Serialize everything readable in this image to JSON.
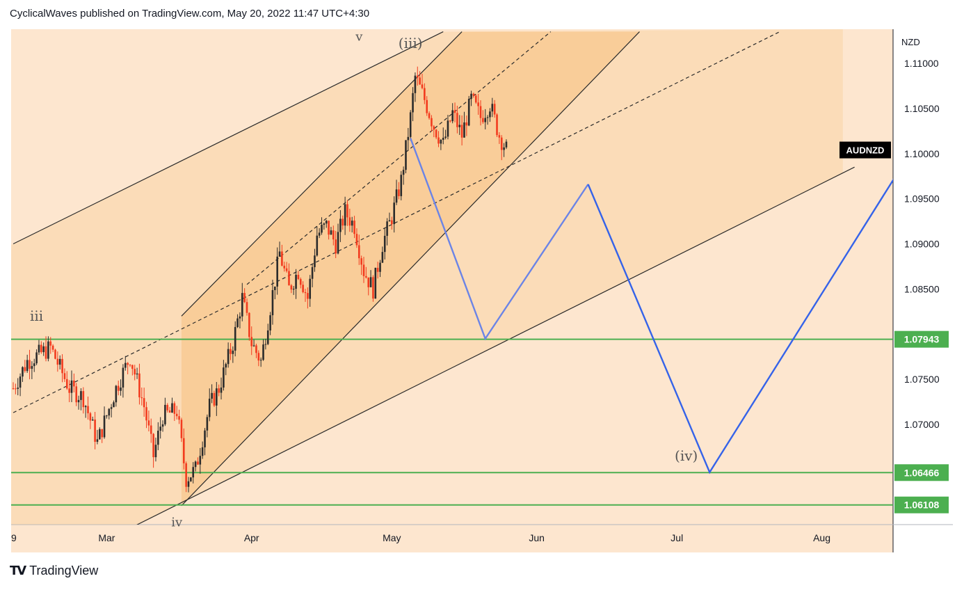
{
  "header": {
    "publish_line": "CyclicalWaves published on TradingView.com, May 20, 2022 11:47 UTC+4:30"
  },
  "footer": {
    "brand_logo": "TV",
    "brand_name": "TradingView"
  },
  "chart_data": {
    "type": "line",
    "symbol": "AUDNZD",
    "currency_label": "NZD",
    "y_ticks": [
      "1.11000",
      "1.10500",
      "1.10000",
      "1.09500",
      "1.09000",
      "1.08500",
      "1.07500",
      "1.07000"
    ],
    "x_ticks": [
      "9",
      "Mar",
      "Apr",
      "May",
      "Jun",
      "Jul",
      "Aug"
    ],
    "ylim": [
      1.0585,
      1.1135
    ],
    "xlim_days": [
      -1,
      191
    ],
    "price_levels": [
      {
        "value": 1.07943,
        "label": "1.07943"
      },
      {
        "value": 1.06466,
        "label": "1.06466"
      },
      {
        "value": 1.06108,
        "label": "1.06108"
      }
    ],
    "wave_labels": [
      {
        "text": "v",
        "day": 74,
        "price": 1.1125
      },
      {
        "text": "(iii)",
        "day": 85,
        "price": 1.1117
      },
      {
        "text": "iii",
        "day": 5,
        "price": 1.0815
      },
      {
        "text": "iv",
        "day": 35,
        "price": 1.0587
      },
      {
        "text": "(iv)",
        "day": 144,
        "price": 1.066
      }
    ],
    "forecast_path_1": [
      {
        "day": 85,
        "price": 1.1017
      },
      {
        "day": 101,
        "price": 1.0795
      },
      {
        "day": 123,
        "price": 1.0966
      }
    ],
    "forecast_path_2": [
      {
        "day": 123,
        "price": 1.0966
      },
      {
        "day": 149,
        "price": 1.0647
      },
      {
        "day": 190,
        "price": 1.0985
      }
    ],
    "channel_lines": [
      {
        "from": {
          "day": 0,
          "price": 1.09
        },
        "to": {
          "day": 92,
          "price": 1.1135
        }
      },
      {
        "from": {
          "day": 36,
          "price": 1.082
        },
        "to": {
          "day": 96,
          "price": 1.1135
        }
      },
      {
        "from": {
          "day": 36,
          "price": 1.061
        },
        "to": {
          "day": 134,
          "price": 1.1135
        }
      },
      {
        "from": {
          "day": 25,
          "price": 1.0585
        },
        "to": {
          "day": 180,
          "price": 1.0985
        }
      }
    ],
    "dashed_lines": [
      {
        "from": {
          "day": 0,
          "price": 1.0713
        },
        "to": {
          "day": 164,
          "price": 1.1135
        }
      },
      {
        "from": {
          "day": 50,
          "price": 1.0855
        },
        "to": {
          "day": 115,
          "price": 1.1135
        }
      }
    ],
    "shaded_areas": [
      {
        "name": "outer-channel-zone",
        "color": "#f7c98c",
        "opacity": 0.35
      },
      {
        "name": "inner-channel-zone",
        "color": "#f7b25f",
        "opacity": 0.35
      }
    ],
    "candles_summary": {
      "period": "Feb 2022 - May 20 2022",
      "anchors": [
        [
          0,
          1.074
        ],
        [
          3,
          1.077
        ],
        [
          8,
          1.0785
        ],
        [
          12,
          1.074
        ],
        [
          15,
          1.073
        ],
        [
          18,
          1.068
        ],
        [
          22,
          1.074
        ],
        [
          25,
          1.0775
        ],
        [
          28,
          1.072
        ],
        [
          30,
          1.0665
        ],
        [
          32,
          1.071
        ],
        [
          35,
          1.0715
        ],
        [
          37,
          1.064
        ],
        [
          39,
          1.065
        ],
        [
          42,
          1.072
        ],
        [
          44,
          1.074
        ],
        [
          47,
          1.079
        ],
        [
          49,
          1.084
        ],
        [
          51,
          1.079
        ],
        [
          53,
          1.077
        ],
        [
          55,
          1.083
        ],
        [
          57,
          1.089
        ],
        [
          59,
          1.085
        ],
        [
          61,
          1.087
        ],
        [
          63,
          1.084
        ],
        [
          65,
          1.091
        ],
        [
          67,
          1.092
        ],
        [
          69,
          1.09
        ],
        [
          71,
          1.0935
        ],
        [
          73,
          1.092
        ],
        [
          75,
          1.087
        ],
        [
          77,
          1.085
        ],
        [
          79,
          1.09
        ],
        [
          81,
          1.093
        ],
        [
          83,
          1.097
        ],
        [
          85,
          1.104
        ],
        [
          86,
          1.1085
        ],
        [
          88,
          1.106
        ],
        [
          90,
          1.103
        ],
        [
          92,
          1.101
        ],
        [
          94,
          1.1045
        ],
        [
          96,
          1.102
        ],
        [
          98,
          1.106
        ],
        [
          100,
          1.104
        ],
        [
          102,
          1.1055
        ],
        [
          104,
          1.102
        ],
        [
          106,
          1.1
        ]
      ]
    },
    "colors": {
      "bullish_candle": "#2b2b2b",
      "bearish_candle": "#f23b1e",
      "forecast_light": "#6b84e6",
      "forecast_dark": "#3563e9",
      "level_line": "#4caf50",
      "symbol_tag_bg": "#000000",
      "background_plot": "#fde6cf"
    }
  }
}
